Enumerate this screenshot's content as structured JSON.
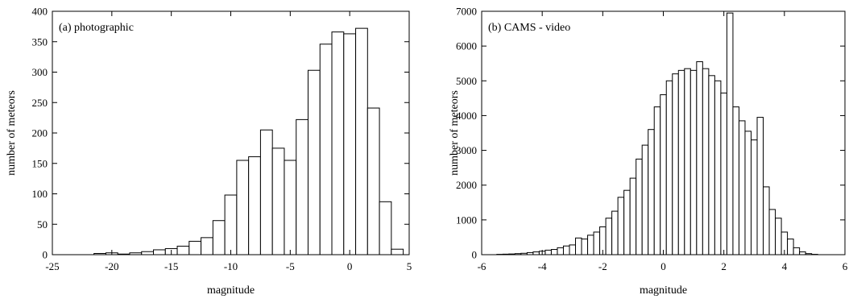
{
  "chart_data": [
    {
      "type": "bar",
      "title": "(a) photographic",
      "xlabel": "magnitude",
      "ylabel": "number of meteors",
      "xlim": [
        -25,
        5
      ],
      "ylim": [
        0,
        400
      ],
      "bin_width": 1,
      "xticks": [
        -25,
        -20,
        -15,
        -10,
        -5,
        0,
        5
      ],
      "yticks": [
        0,
        50,
        100,
        150,
        200,
        250,
        300,
        350,
        400
      ],
      "grid": false,
      "bins": [
        {
          "x": -21,
          "value": 2
        },
        {
          "x": -20,
          "value": 3
        },
        {
          "x": -19,
          "value": 1
        },
        {
          "x": -18,
          "value": 3
        },
        {
          "x": -17,
          "value": 5
        },
        {
          "x": -16,
          "value": 8
        },
        {
          "x": -15,
          "value": 10
        },
        {
          "x": -14,
          "value": 14
        },
        {
          "x": -13,
          "value": 22
        },
        {
          "x": -12,
          "value": 28
        },
        {
          "x": -11,
          "value": 56
        },
        {
          "x": -10,
          "value": 98
        },
        {
          "x": -9,
          "value": 155
        },
        {
          "x": -8,
          "value": 161
        },
        {
          "x": -7,
          "value": 205
        },
        {
          "x": -6,
          "value": 175
        },
        {
          "x": -5,
          "value": 155
        },
        {
          "x": -4,
          "value": 222
        },
        {
          "x": -3,
          "value": 303
        },
        {
          "x": -2,
          "value": 346
        },
        {
          "x": -1,
          "value": 366
        },
        {
          "x": 0,
          "value": 363
        },
        {
          "x": 1,
          "value": 372
        },
        {
          "x": 2,
          "value": 241
        },
        {
          "x": 3,
          "value": 87
        },
        {
          "x": 4,
          "value": 9
        }
      ]
    },
    {
      "type": "bar",
      "title": "(b) CAMS - video",
      "xlabel": "magnitude",
      "ylabel": "number of meteors",
      "xlim": [
        -6,
        6
      ],
      "ylim": [
        0,
        7000
      ],
      "bin_width": 0.2,
      "xticks": [
        -6,
        -4,
        -2,
        0,
        2,
        4,
        6
      ],
      "yticks": [
        0,
        1000,
        2000,
        3000,
        4000,
        5000,
        6000,
        7000
      ],
      "grid": false,
      "bins": [
        {
          "x": -5.4,
          "value": 10
        },
        {
          "x": -5.2,
          "value": 15
        },
        {
          "x": -5.0,
          "value": 20
        },
        {
          "x": -4.8,
          "value": 30
        },
        {
          "x": -4.6,
          "value": 40
        },
        {
          "x": -4.4,
          "value": 60
        },
        {
          "x": -4.2,
          "value": 80
        },
        {
          "x": -4.0,
          "value": 100
        },
        {
          "x": -3.8,
          "value": 130
        },
        {
          "x": -3.6,
          "value": 150
        },
        {
          "x": -3.4,
          "value": 200
        },
        {
          "x": -3.2,
          "value": 250
        },
        {
          "x": -3.0,
          "value": 280
        },
        {
          "x": -2.8,
          "value": 480
        },
        {
          "x": -2.6,
          "value": 450
        },
        {
          "x": -2.4,
          "value": 560
        },
        {
          "x": -2.2,
          "value": 650
        },
        {
          "x": -2.0,
          "value": 800
        },
        {
          "x": -1.8,
          "value": 1050
        },
        {
          "x": -1.6,
          "value": 1250
        },
        {
          "x": -1.4,
          "value": 1650
        },
        {
          "x": -1.2,
          "value": 1850
        },
        {
          "x": -1.0,
          "value": 2200
        },
        {
          "x": -0.8,
          "value": 2750
        },
        {
          "x": -0.6,
          "value": 3150
        },
        {
          "x": -0.4,
          "value": 3600
        },
        {
          "x": -0.2,
          "value": 4250
        },
        {
          "x": 0.0,
          "value": 4600
        },
        {
          "x": 0.2,
          "value": 5000
        },
        {
          "x": 0.4,
          "value": 5200
        },
        {
          "x": 0.6,
          "value": 5300
        },
        {
          "x": 0.8,
          "value": 5350
        },
        {
          "x": 1.0,
          "value": 5300
        },
        {
          "x": 1.2,
          "value": 5550
        },
        {
          "x": 1.4,
          "value": 5350
        },
        {
          "x": 1.6,
          "value": 5150
        },
        {
          "x": 1.8,
          "value": 5000
        },
        {
          "x": 2.0,
          "value": 4650
        },
        {
          "x": 2.2,
          "value": 6950
        },
        {
          "x": 2.4,
          "value": 4250
        },
        {
          "x": 2.6,
          "value": 3850
        },
        {
          "x": 2.8,
          "value": 3550
        },
        {
          "x": 3.0,
          "value": 3300
        },
        {
          "x": 3.2,
          "value": 3950
        },
        {
          "x": 3.4,
          "value": 1950
        },
        {
          "x": 3.6,
          "value": 1300
        },
        {
          "x": 3.8,
          "value": 1050
        },
        {
          "x": 4.0,
          "value": 650
        },
        {
          "x": 4.2,
          "value": 450
        },
        {
          "x": 4.4,
          "value": 200
        },
        {
          "x": 4.6,
          "value": 80
        },
        {
          "x": 4.8,
          "value": 30
        },
        {
          "x": 5.0,
          "value": 10
        }
      ]
    }
  ]
}
